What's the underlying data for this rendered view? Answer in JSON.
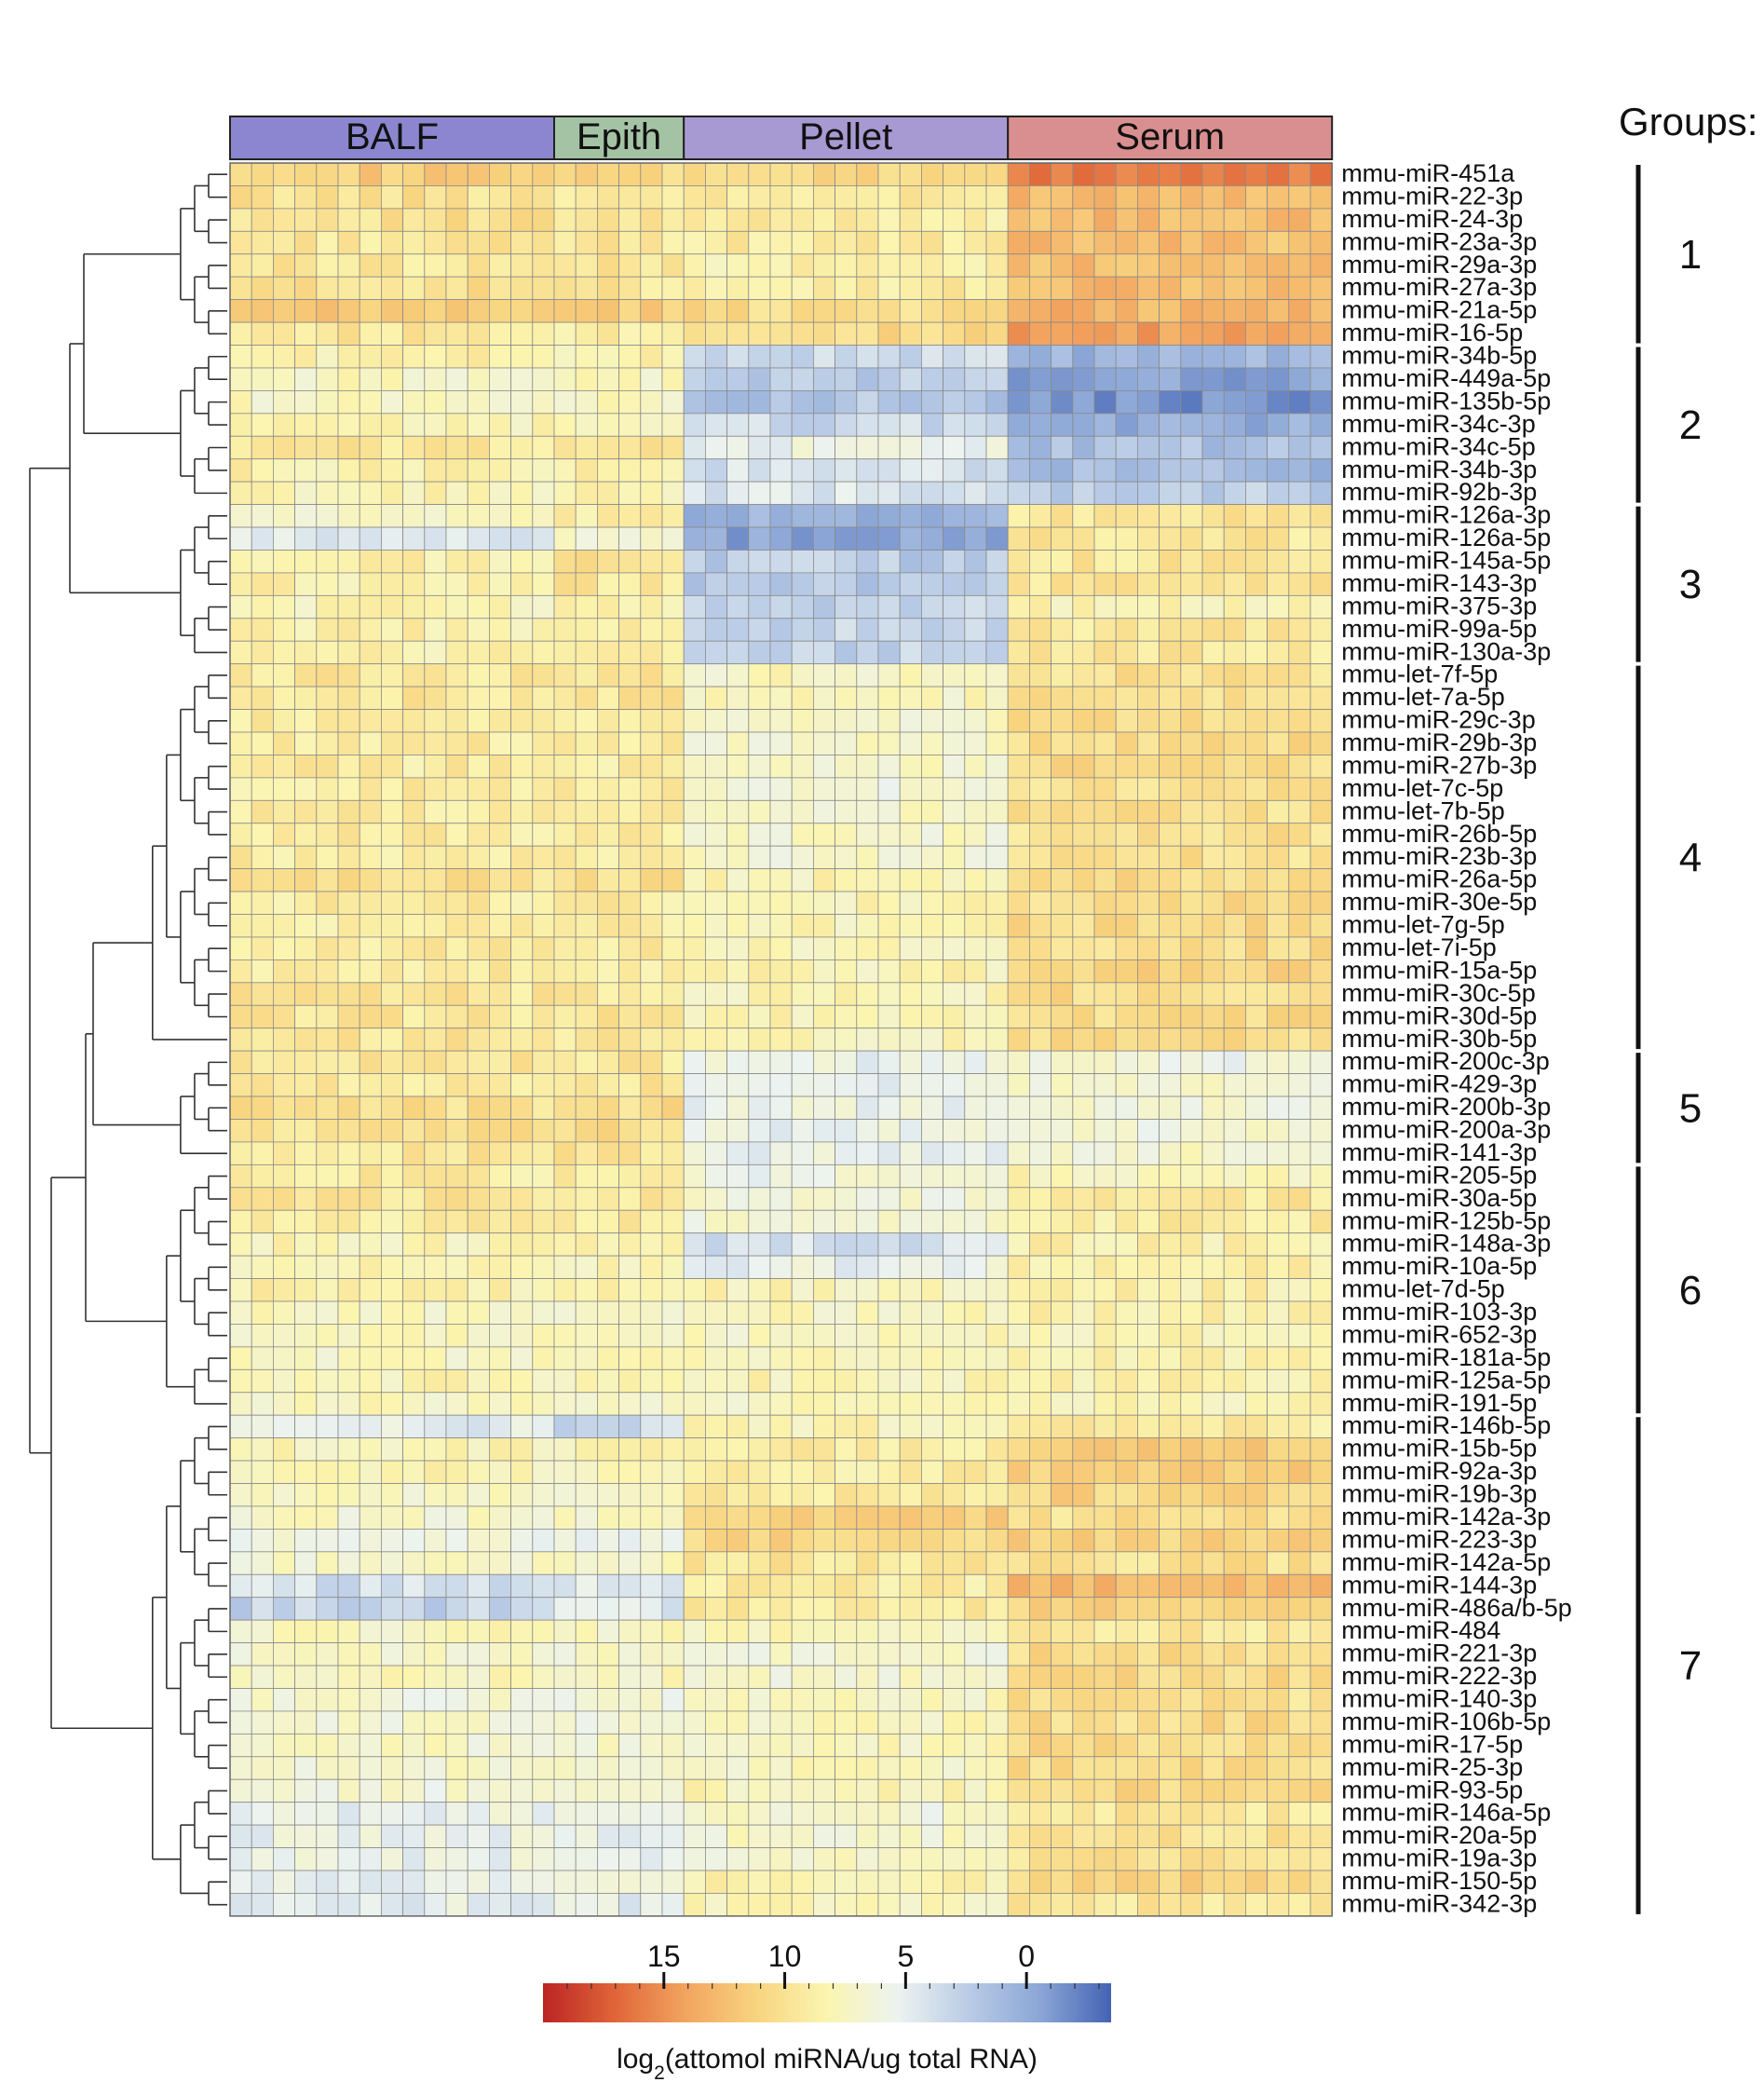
{
  "chart_data": {
    "type": "heatmap",
    "title": "",
    "xlabel": "",
    "ylabel": "",
    "column_groups": [
      {
        "name": "BALF",
        "count": 15,
        "color": "#8b86cf"
      },
      {
        "name": "Epith",
        "count": 6,
        "color": "#a4c3a4"
      },
      {
        "name": "Pellet",
        "count": 15,
        "color": "#a79ad2"
      },
      {
        "name": "Serum",
        "count": 15,
        "color": "#d98f8f"
      }
    ],
    "rows": [
      "mmu-miR-451a",
      "mmu-miR-22-3p",
      "mmu-miR-24-3p",
      "mmu-miR-23a-3p",
      "mmu-miR-29a-3p",
      "mmu-miR-27a-3p",
      "mmu-miR-21a-5p",
      "mmu-miR-16-5p",
      "mmu-miR-34b-5p",
      "mmu-miR-449a-5p",
      "mmu-miR-135b-5p",
      "mmu-miR-34c-3p",
      "mmu-miR-34c-5p",
      "mmu-miR-34b-3p",
      "mmu-miR-92b-3p",
      "mmu-miR-126a-3p",
      "mmu-miR-126a-5p",
      "mmu-miR-145a-5p",
      "mmu-miR-143-3p",
      "mmu-miR-375-3p",
      "mmu-miR-99a-5p",
      "mmu-miR-130a-3p",
      "mmu-let-7f-5p",
      "mmu-let-7a-5p",
      "mmu-miR-29c-3p",
      "mmu-miR-29b-3p",
      "mmu-miR-27b-3p",
      "mmu-let-7c-5p",
      "mmu-let-7b-5p",
      "mmu-miR-26b-5p",
      "mmu-miR-23b-3p",
      "mmu-miR-26a-5p",
      "mmu-miR-30e-5p",
      "mmu-let-7g-5p",
      "mmu-let-7i-5p",
      "mmu-miR-15a-5p",
      "mmu-miR-30c-5p",
      "mmu-miR-30d-5p",
      "mmu-miR-30b-5p",
      "mmu-miR-200c-3p",
      "mmu-miR-429-3p",
      "mmu-miR-200b-3p",
      "mmu-miR-200a-3p",
      "mmu-miR-141-3p",
      "mmu-miR-205-5p",
      "mmu-miR-30a-5p",
      "mmu-miR-125b-5p",
      "mmu-miR-148a-3p",
      "mmu-miR-10a-5p",
      "mmu-let-7d-5p",
      "mmu-miR-103-3p",
      "mmu-miR-652-3p",
      "mmu-miR-181a-5p",
      "mmu-miR-125a-5p",
      "mmu-miR-191-5p",
      "mmu-miR-146b-5p",
      "mmu-miR-15b-5p",
      "mmu-miR-92a-3p",
      "mmu-miR-19b-3p",
      "mmu-miR-142a-3p",
      "mmu-miR-223-3p",
      "mmu-miR-142a-5p",
      "mmu-miR-144-3p",
      "mmu-miR-486a/b-5p",
      "mmu-miR-484",
      "mmu-miR-221-3p",
      "mmu-miR-222-3p",
      "mmu-miR-140-3p",
      "mmu-miR-106b-5p",
      "mmu-miR-17-5p",
      "mmu-miR-25-3p",
      "mmu-miR-93-5p",
      "mmu-miR-146a-5p",
      "mmu-miR-20a-5p",
      "mmu-miR-19a-3p",
      "mmu-miR-150-5p",
      "mmu-miR-342-3p"
    ],
    "row_groups": [
      {
        "label": "1",
        "start": 0,
        "end": 7
      },
      {
        "label": "2",
        "start": 8,
        "end": 14
      },
      {
        "label": "3",
        "start": 15,
        "end": 21
      },
      {
        "label": "4",
        "start": 22,
        "end": 38
      },
      {
        "label": "5",
        "start": 39,
        "end": 43
      },
      {
        "label": "6",
        "start": 44,
        "end": 54
      },
      {
        "label": "7",
        "start": 55,
        "end": 76
      }
    ],
    "groups_label": "Groups:",
    "approx_group_means": [
      [
        11.5,
        10.5,
        10.5,
        16.0
      ],
      [
        10.0,
        9.5,
        9.0,
        13.0
      ],
      [
        10.0,
        9.5,
        9.0,
        12.5
      ],
      [
        9.5,
        9.5,
        9.0,
        12.5
      ],
      [
        9.5,
        9.5,
        8.5,
        12.5
      ],
      [
        10.0,
        9.5,
        9.0,
        12.5
      ],
      [
        11.5,
        11.5,
        10.5,
        13.0
      ],
      [
        9.5,
        9.0,
        10.5,
        14.0
      ],
      [
        8.5,
        8.5,
        3.5,
        0.5
      ],
      [
        7.5,
        7.5,
        2.5,
        -0.5
      ],
      [
        7.5,
        7.5,
        2.0,
        -1.5
      ],
      [
        8.0,
        8.0,
        3.5,
        0.0
      ],
      [
        9.5,
        9.5,
        5.5,
        1.5
      ],
      [
        8.5,
        8.5,
        4.0,
        1.0
      ],
      [
        8.0,
        8.0,
        4.5,
        2.5
      ],
      [
        7.0,
        8.5,
        0.5,
        9.5
      ],
      [
        4.5,
        7.0,
        -0.5,
        9.5
      ],
      [
        8.5,
        10.0,
        2.5,
        9.5
      ],
      [
        8.5,
        9.5,
        2.0,
        9.5
      ],
      [
        8.0,
        8.5,
        3.0,
        8.0
      ],
      [
        8.5,
        8.5,
        3.0,
        9.5
      ],
      [
        8.5,
        8.5,
        3.0,
        9.5
      ],
      [
        9.5,
        9.5,
        7.5,
        10.0
      ],
      [
        9.5,
        9.5,
        7.5,
        10.0
      ],
      [
        9.0,
        9.0,
        7.0,
        10.5
      ],
      [
        9.0,
        9.0,
        7.0,
        10.5
      ],
      [
        9.0,
        9.0,
        7.0,
        10.5
      ],
      [
        9.0,
        9.0,
        6.5,
        10.0
      ],
      [
        9.0,
        9.0,
        7.0,
        10.0
      ],
      [
        9.0,
        9.0,
        7.0,
        10.0
      ],
      [
        9.0,
        9.0,
        7.0,
        10.0
      ],
      [
        10.0,
        10.0,
        8.0,
        10.5
      ],
      [
        9.0,
        9.0,
        8.0,
        10.5
      ],
      [
        9.0,
        9.0,
        8.0,
        10.5
      ],
      [
        9.0,
        9.0,
        8.0,
        10.5
      ],
      [
        9.0,
        9.0,
        8.0,
        11.0
      ],
      [
        9.5,
        9.5,
        8.0,
        10.5
      ],
      [
        9.5,
        9.5,
        8.0,
        10.5
      ],
      [
        9.5,
        9.5,
        8.0,
        10.5
      ],
      [
        9.5,
        9.5,
        5.5,
        6.0
      ],
      [
        9.5,
        9.5,
        5.5,
        6.5
      ],
      [
        10.0,
        10.5,
        5.5,
        6.5
      ],
      [
        10.0,
        10.5,
        5.5,
        6.5
      ],
      [
        9.5,
        9.5,
        5.5,
        7.0
      ],
      [
        9.0,
        9.0,
        6.0,
        8.0
      ],
      [
        9.5,
        9.5,
        6.5,
        9.5
      ],
      [
        9.0,
        9.0,
        6.5,
        9.0
      ],
      [
        8.0,
        8.5,
        4.0,
        8.5
      ],
      [
        8.0,
        8.0,
        5.5,
        8.5
      ],
      [
        8.5,
        8.5,
        8.0,
        8.5
      ],
      [
        7.5,
        7.5,
        7.5,
        8.5
      ],
      [
        7.5,
        7.5,
        7.5,
        8.0
      ],
      [
        7.5,
        7.5,
        7.5,
        8.5
      ],
      [
        8.0,
        8.0,
        8.0,
        8.5
      ],
      [
        7.5,
        7.5,
        7.5,
        8.0
      ],
      [
        5.0,
        3.5,
        8.0,
        9.0
      ],
      [
        8.0,
        8.0,
        9.0,
        11.5
      ],
      [
        8.0,
        8.0,
        9.0,
        11.5
      ],
      [
        7.5,
        7.5,
        9.0,
        11.0
      ],
      [
        7.0,
        7.0,
        11.5,
        10.0
      ],
      [
        6.0,
        6.0,
        11.0,
        11.0
      ],
      [
        7.0,
        7.0,
        9.5,
        10.0
      ],
      [
        4.0,
        4.5,
        9.0,
        12.5
      ],
      [
        3.0,
        4.5,
        9.0,
        11.0
      ],
      [
        7.5,
        7.5,
        7.5,
        9.5
      ],
      [
        7.0,
        7.0,
        6.5,
        10.5
      ],
      [
        7.5,
        7.5,
        7.0,
        10.5
      ],
      [
        6.5,
        6.5,
        7.5,
        10.0
      ],
      [
        6.5,
        6.5,
        7.5,
        10.5
      ],
      [
        7.0,
        7.0,
        7.5,
        10.5
      ],
      [
        7.0,
        7.0,
        7.5,
        10.5
      ],
      [
        6.5,
        6.5,
        8.0,
        10.5
      ],
      [
        5.5,
        5.5,
        6.5,
        9.5
      ],
      [
        5.5,
        5.5,
        7.0,
        10.0
      ],
      [
        5.5,
        5.5,
        7.0,
        10.0
      ],
      [
        5.0,
        5.5,
        8.5,
        11.0
      ],
      [
        5.0,
        5.0,
        8.0,
        9.5
      ]
    ],
    "colorbar": {
      "ticks": [
        15,
        10,
        5,
        0
      ],
      "domain": [
        20,
        -3.5
      ],
      "colors": [
        "#bb2424",
        "#e06438",
        "#f2a45e",
        "#f8d47f",
        "#fbf5b0",
        "#ecf3f0",
        "#b9cbe6",
        "#8ba6d6",
        "#4463b4"
      ],
      "label_prefix": "log",
      "label_sub": "2",
      "label_suffix": "(attomol miRNA/ug total RNA)"
    }
  }
}
